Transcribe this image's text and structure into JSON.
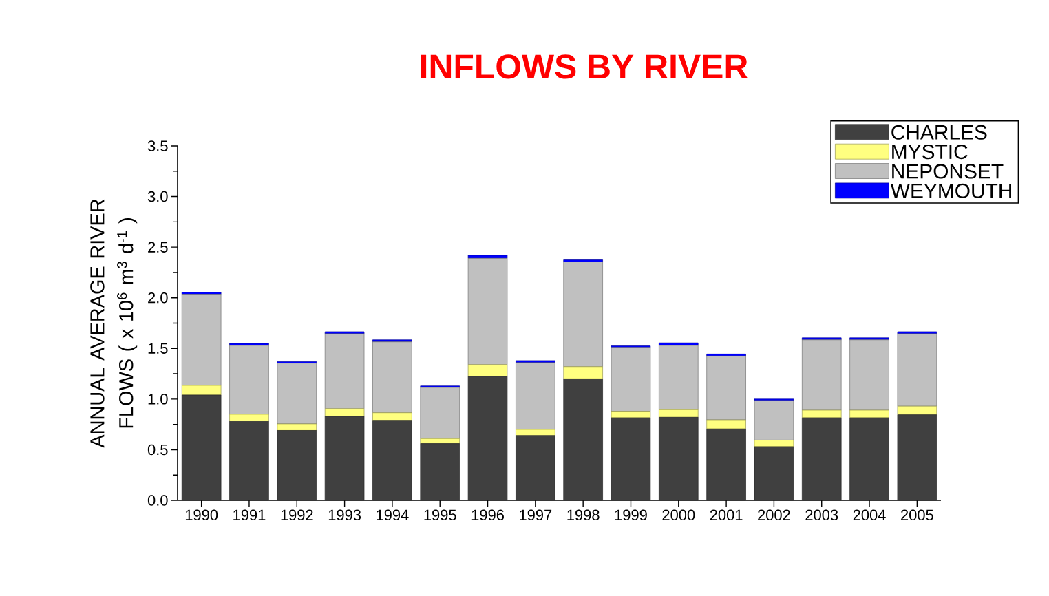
{
  "chart_data": {
    "type": "bar",
    "stacked": true,
    "title": "INFLOWS  BY  RIVER",
    "ylabel": "ANNUAL  AVERAGE RIVER  FLOWS ( x 10$^{6}$ m$^{3}$ d$^{-1}$ )",
    "categories": [
      "1990",
      "1991",
      "1992",
      "1993",
      "1994",
      "1995",
      "1996",
      "1997",
      "1998",
      "1999",
      "2000",
      "2001",
      "2002",
      "2003",
      "2004",
      "2005"
    ],
    "series": [
      {
        "name": "CHARLES",
        "color": "#404040",
        "values": [
          1.04,
          0.78,
          0.69,
          0.83,
          0.79,
          0.56,
          1.225,
          0.64,
          1.2,
          0.815,
          0.82,
          0.705,
          0.53,
          0.815,
          0.815,
          0.845
        ]
      },
      {
        "name": "MYSTIC",
        "color": "#ffff80",
        "values": [
          0.095,
          0.07,
          0.065,
          0.075,
          0.075,
          0.05,
          0.115,
          0.06,
          0.12,
          0.065,
          0.075,
          0.09,
          0.065,
          0.075,
          0.075,
          0.085
        ]
      },
      {
        "name": "NEPONSET",
        "color": "#c0c0c0",
        "values": [
          0.9,
          0.68,
          0.6,
          0.74,
          0.7,
          0.505,
          1.05,
          0.66,
          1.035,
          0.63,
          0.635,
          0.63,
          0.39,
          0.695,
          0.695,
          0.715
        ]
      },
      {
        "name": "WEYMOUTH",
        "color": "#0000ff",
        "values": [
          0.02,
          0.02,
          0.015,
          0.02,
          0.02,
          0.015,
          0.03,
          0.02,
          0.02,
          0.015,
          0.025,
          0.02,
          0.015,
          0.02,
          0.02,
          0.02
        ]
      }
    ],
    "ylim": [
      0,
      3.5
    ],
    "yticks": [
      {
        "value": 0,
        "label": "0.0"
      },
      0.5,
      {
        "value": 1,
        "label": "1.0"
      },
      1.5,
      {
        "value": 2,
        "label": "2.0"
      },
      2.5,
      {
        "value": 3,
        "label": "3.0"
      },
      3.5
    ],
    "grid": false,
    "legend": "top right"
  }
}
